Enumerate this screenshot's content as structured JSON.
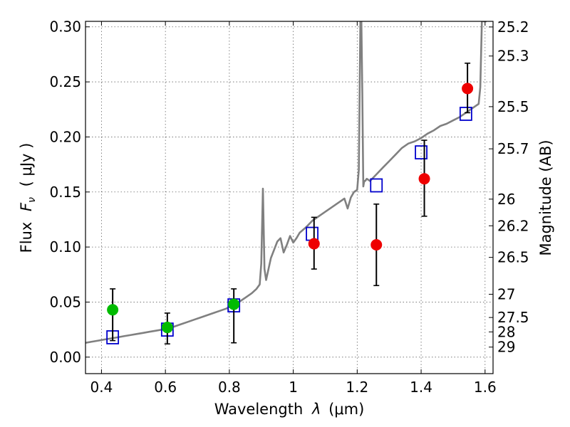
{
  "chart_data": {
    "type": "scatter",
    "xlabel_prefix": "Wavelength",
    "xlabel_symbol": "λ",
    "xlabel_unit": "(μm)",
    "ylabel_prefix": "Flux",
    "ylabel_symbol": "F",
    "ylabel_subscript": "ν",
    "ylabel_unit": "( μJy )",
    "y2label": "Magnitude (AB)",
    "xlim": [
      0.35,
      1.625
    ],
    "ylim": [
      -0.015,
      0.305
    ],
    "xticks": [
      0.4,
      0.6,
      0.8,
      1.0,
      1.2,
      1.4,
      1.6
    ],
    "xtick_labels": [
      "0.4",
      "0.6",
      "0.8",
      "1",
      "1.2",
      "1.4",
      "1.6"
    ],
    "yticks": [
      0.0,
      0.05,
      0.1,
      0.15,
      0.2,
      0.25,
      0.3
    ],
    "ytick_labels": [
      "0.00",
      "0.05",
      "0.10",
      "0.15",
      "0.20",
      "0.25",
      "0.30"
    ],
    "magnitude_ticks": [
      {
        "label": "25.2",
        "flux": 0.2999
      },
      {
        "label": "25.3",
        "flux": 0.2735
      },
      {
        "label": "25.5",
        "flux": 0.2275
      },
      {
        "label": "25.7",
        "flux": 0.1892
      },
      {
        "label": "26",
        "flux": 0.1435
      },
      {
        "label": "26.2",
        "flux": 0.1193
      },
      {
        "label": "26.5",
        "flux": 0.0906
      },
      {
        "label": "27",
        "flux": 0.0571
      },
      {
        "label": "27.5",
        "flux": 0.036
      },
      {
        "label": "28",
        "flux": 0.0229
      },
      {
        "label": "29",
        "flux": 0.0091
      }
    ],
    "grid": true,
    "series": [
      {
        "name": "Model spectrum",
        "kind": "line",
        "color": "#808080",
        "x": [
          0.35,
          0.37,
          0.39,
          0.41,
          0.43,
          0.45,
          0.47,
          0.49,
          0.51,
          0.53,
          0.55,
          0.57,
          0.59,
          0.61,
          0.63,
          0.65,
          0.67,
          0.69,
          0.71,
          0.73,
          0.75,
          0.77,
          0.79,
          0.81,
          0.83,
          0.85,
          0.87,
          0.885,
          0.895,
          0.9,
          0.905,
          0.91,
          0.915,
          0.93,
          0.95,
          0.96,
          0.97,
          0.98,
          0.99,
          1.0,
          1.01,
          1.02,
          1.04,
          1.06,
          1.08,
          1.1,
          1.12,
          1.14,
          1.16,
          1.17,
          1.18,
          1.19,
          1.2,
          1.205,
          1.21,
          1.213,
          1.216,
          1.219,
          1.222,
          1.225,
          1.23,
          1.24,
          1.26,
          1.28,
          1.3,
          1.32,
          1.34,
          1.36,
          1.38,
          1.4,
          1.42,
          1.44,
          1.46,
          1.48,
          1.5,
          1.52,
          1.54,
          1.56,
          1.57,
          1.58,
          1.585,
          1.59,
          1.595,
          1.6,
          1.605
        ],
        "values": [
          0.013,
          0.014,
          0.015,
          0.016,
          0.017,
          0.018,
          0.019,
          0.02,
          0.021,
          0.022,
          0.023,
          0.024,
          0.025,
          0.026,
          0.028,
          0.03,
          0.032,
          0.034,
          0.036,
          0.038,
          0.04,
          0.042,
          0.044,
          0.047,
          0.05,
          0.054,
          0.058,
          0.062,
          0.066,
          0.085,
          0.153,
          0.08,
          0.07,
          0.09,
          0.105,
          0.108,
          0.095,
          0.102,
          0.11,
          0.104,
          0.108,
          0.113,
          0.118,
          0.124,
          0.128,
          0.132,
          0.136,
          0.14,
          0.144,
          0.135,
          0.145,
          0.15,
          0.152,
          0.17,
          0.305,
          0.305,
          0.24,
          0.155,
          0.16,
          0.16,
          0.162,
          0.16,
          0.166,
          0.172,
          0.178,
          0.184,
          0.19,
          0.194,
          0.196,
          0.199,
          0.203,
          0.206,
          0.21,
          0.212,
          0.215,
          0.218,
          0.222,
          0.226,
          0.228,
          0.23,
          0.245,
          0.305,
          0.305,
          0.305,
          0.305
        ]
      },
      {
        "name": "Model photometry",
        "kind": "open-square",
        "color": "#0000cc",
        "x": [
          0.435,
          0.606,
          0.814,
          1.059,
          1.26,
          1.4,
          1.54
        ],
        "values": [
          0.018,
          0.025,
          0.047,
          0.112,
          0.156,
          0.186,
          0.221
        ]
      },
      {
        "name": "Observed (green)",
        "kind": "filled-circle",
        "color": "#00bb00",
        "x": [
          0.435,
          0.606,
          0.814
        ],
        "values": [
          0.043,
          0.027,
          0.048
        ],
        "err_low": [
          0.015,
          0.012,
          0.013
        ],
        "err_high": [
          0.062,
          0.04,
          0.062
        ]
      },
      {
        "name": "Observed (red)",
        "kind": "filled-circle",
        "color": "#ee0000",
        "x": [
          1.065,
          1.26,
          1.41,
          1.545
        ],
        "values": [
          0.103,
          0.102,
          0.162,
          0.244
        ],
        "err_low": [
          0.08,
          0.065,
          0.128,
          0.222
        ],
        "err_high": [
          0.127,
          0.139,
          0.197,
          0.267
        ]
      }
    ]
  }
}
